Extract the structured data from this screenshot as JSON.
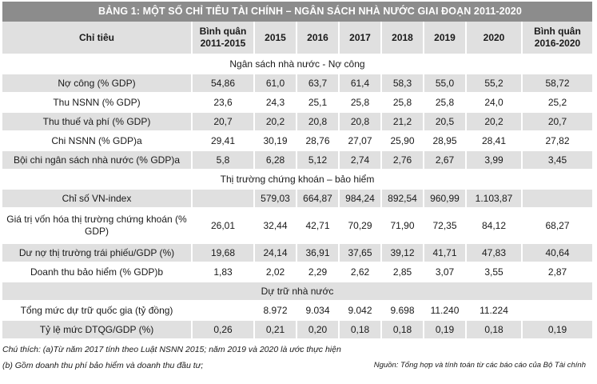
{
  "title": "BẢNG 1: MỘT SỐ CHỈ TIÊU TÀI CHÍNH – NGÂN SÁCH NHÀ NƯỚC GIAI ĐOẠN 2011-2020",
  "header": {
    "col0": "Chỉ tiêu",
    "col1": "Bình quân 2011-2015",
    "col2": "2015",
    "col3": "2016",
    "col4": "2017",
    "col5": "2018",
    "col6": "2019",
    "col7": "2020",
    "col8": "Bình quân 2016-2020"
  },
  "sections": {
    "s1": "Ngân sách nhà nước - Nợ công",
    "s2": "Thị trường chứng khoán – bảo hiểm",
    "s3": "Dự trữ nhà nước"
  },
  "rows": [
    {
      "label": "Nợ công (% GDP)",
      "v": [
        "54,86",
        "61,0",
        "63,7",
        "61,4",
        "58,3",
        "55,0",
        "55,2",
        "58,72"
      ]
    },
    {
      "label": "Thu NSNN (% GDP)",
      "v": [
        "23,6",
        "24,3",
        "25,1",
        "25,8",
        "25,8",
        "25,8",
        "24,0",
        "25,2"
      ]
    },
    {
      "label": "Thu thuế và phí (% GDP)",
      "v": [
        "20,7",
        "20,2",
        "20,8",
        "20,8",
        "21,2",
        "20,5",
        "20,2",
        "20,7"
      ]
    },
    {
      "label": "Chi NSNN (% GDP)a",
      "v": [
        "29,41",
        "30,19",
        "28,76",
        "27,07",
        "25,90",
        "28,95",
        "28,41",
        "27,82"
      ]
    },
    {
      "label": "Bội chi ngân sách nhà nước (% GDP)a",
      "v": [
        "5,8",
        "6,28",
        "5,12",
        "2,74",
        "2,76",
        "2,67",
        "3,99",
        "3,45"
      ]
    },
    {
      "label": "Chỉ số VN-index",
      "v": [
        "",
        "579,03",
        "664,87",
        "984,24",
        "892,54",
        "960,99",
        "1.103,87",
        ""
      ]
    },
    {
      "label": "Giá trị vốn hóa thị trường chứng khoán (% GDP)",
      "v": [
        "26,01",
        "32,44",
        "42,71",
        "70,29",
        "71,90",
        "72,35",
        "84,12",
        "68,27"
      ]
    },
    {
      "label": "Dư nợ thị trường trái phiếu/GDP (%)",
      "v": [
        "19,68",
        "24,14",
        "36,91",
        "37,65",
        "39,12",
        "41,71",
        "47,83",
        "40,64"
      ]
    },
    {
      "label": "Doanh thu bảo hiểm (% GDP)b",
      "v": [
        "1,83",
        "2,02",
        "2,29",
        "2,62",
        "2,85",
        "3,07",
        "3,55",
        "2,87"
      ]
    },
    {
      "label": "Tổng mức dự trữ quốc gia (tỷ đồng)",
      "v": [
        "",
        "8.972",
        "9.034",
        "9.042",
        "9.698",
        "11.240",
        "11.224",
        ""
      ]
    },
    {
      "label": "Tỷ lệ mức DTQG/GDP (%)",
      "v": [
        "0,26",
        "0,21",
        "0,20",
        "0,18",
        "0,18",
        "0,19",
        "0,18",
        "0,19"
      ]
    }
  ],
  "notes": {
    "note1": "Chú thích: (a)Từ năm 2017 tính theo Luật NSNN 2015; năm 2019 và 2020 là ước thực hiện",
    "note2": "(b) Gồm doanh thu phí bảo hiểm và doanh thu đầu tư;",
    "source": "Nguồn: Tổng hợp và tính toán từ các báo cáo của Bộ Tài chính"
  }
}
